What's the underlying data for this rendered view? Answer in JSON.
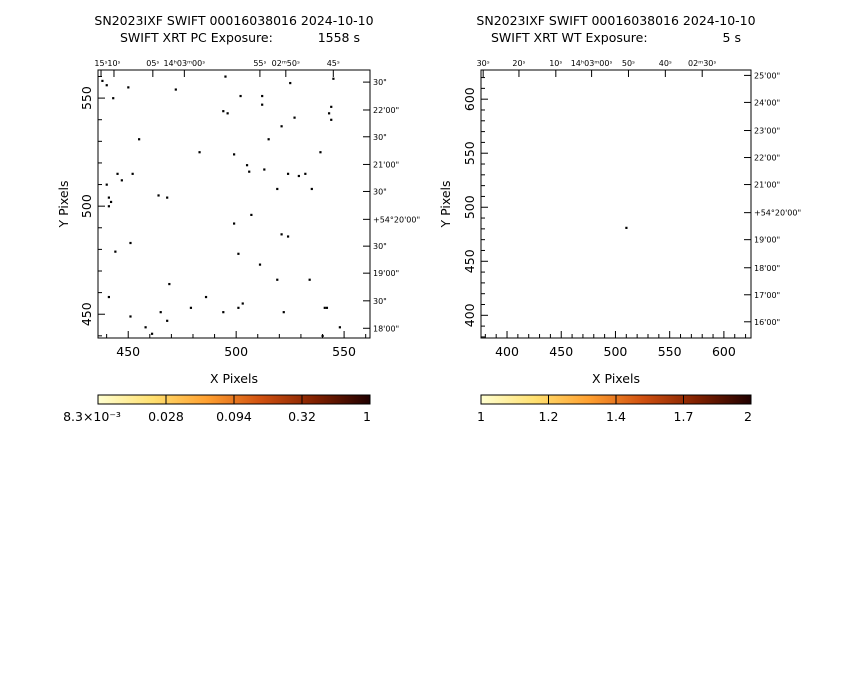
{
  "chart_data": [
    {
      "type": "scatter",
      "title": "SN2023IXF SWIFT 00016038016 2024-10-10",
      "subtitle_label": "SWIFT XRT PC Exposure:",
      "subtitle_value": "1558 s",
      "xlabel": "X Pixels",
      "ylabel": "Y Pixels",
      "xlim": [
        436,
        562
      ],
      "ylim": [
        439,
        563
      ],
      "x_ticks": [
        "450",
        "500",
        "550"
      ],
      "y_ticks": [
        "450",
        "500",
        "550"
      ],
      "ra_ticks": [
        "15ˢ",
        "10ˢ",
        "05ˢ",
        "14ʰ03ᵐ00ˢ",
        "55ˢ",
        "02ᵐ50ˢ",
        "45ˢ"
      ],
      "ra_x": [
        437.4,
        443.4,
        461.4,
        476,
        511,
        523,
        545
      ],
      "dec_ticks": [
        "30\"",
        "22'00\"",
        "30\"",
        "21'00\"",
        "30\"",
        "+54°20'00\"",
        "30\"",
        "19'00\"",
        "30\"",
        "18'00\""
      ],
      "dec_y": [
        557.4,
        544.5,
        532.1,
        519.3,
        506.8,
        493.9,
        481.5,
        469.0,
        456.2,
        443.5
      ],
      "events": [
        [
          438,
          558
        ],
        [
          440,
          556
        ],
        [
          443,
          550
        ],
        [
          450,
          555
        ],
        [
          472,
          554
        ],
        [
          495,
          560
        ],
        [
          502,
          551
        ],
        [
          512,
          551
        ],
        [
          525,
          557
        ],
        [
          545,
          559
        ],
        [
          494,
          544
        ],
        [
          496,
          543
        ],
        [
          512,
          547
        ],
        [
          544,
          546
        ],
        [
          543,
          543
        ],
        [
          544,
          540
        ],
        [
          521,
          537
        ],
        [
          527,
          541
        ],
        [
          539,
          525
        ],
        [
          513,
          517
        ],
        [
          506,
          516
        ],
        [
          499,
          524
        ],
        [
          483,
          525
        ],
        [
          455,
          531
        ],
        [
          515,
          531
        ],
        [
          468,
          504
        ],
        [
          447,
          512
        ],
        [
          452,
          515
        ],
        [
          442,
          502
        ],
        [
          441,
          500
        ],
        [
          464,
          505
        ],
        [
          441,
          504
        ],
        [
          445,
          515
        ],
        [
          440,
          510
        ],
        [
          505,
          519
        ],
        [
          519,
          508
        ],
        [
          524,
          515
        ],
        [
          529,
          514
        ],
        [
          532,
          515
        ],
        [
          499,
          492
        ],
        [
          507,
          496
        ],
        [
          521,
          487
        ],
        [
          524,
          486
        ],
        [
          535,
          508
        ],
        [
          451,
          483
        ],
        [
          444,
          479
        ],
        [
          501,
          478
        ],
        [
          511,
          473
        ],
        [
          519,
          466
        ],
        [
          534,
          466
        ],
        [
          469,
          464
        ],
        [
          486,
          458
        ],
        [
          479,
          453
        ],
        [
          465,
          451
        ],
        [
          468,
          447
        ],
        [
          451,
          449
        ],
        [
          458,
          444
        ],
        [
          461,
          441
        ],
        [
          441,
          458
        ],
        [
          501,
          453
        ],
        [
          503,
          455
        ],
        [
          541,
          453
        ],
        [
          542,
          453
        ],
        [
          522,
          451
        ],
        [
          494,
          451
        ],
        [
          548,
          444
        ],
        [
          540,
          440
        ]
      ],
      "colorbar": {
        "ticks": [
          "8.3×10⁻³",
          "0.028",
          "0.094",
          "0.32",
          "1"
        ],
        "colors": [
          "#ffffd0",
          "#ffe070",
          "#ffa030",
          "#d05010",
          "#802000",
          "#200000"
        ]
      }
    },
    {
      "type": "scatter",
      "title": "SN2023IXF SWIFT 00016038016 2024-10-10",
      "subtitle_label": "SWIFT XRT WT Exposure:",
      "subtitle_value": "5 s",
      "xlabel": "X Pixels",
      "ylabel": "Y Pixels",
      "xlim": [
        376,
        625
      ],
      "ylim": [
        379,
        627
      ],
      "x_ticks": [
        "400",
        "450",
        "500",
        "550",
        "600"
      ],
      "y_ticks": [
        "400",
        "450",
        "500",
        "550",
        "600"
      ],
      "ra_ticks": [
        "30ˢ",
        "20ˢ",
        "10ˢ",
        "14ʰ03ᵐ00ˢ",
        "50ˢ",
        "40ˢ",
        "02ᵐ30ˢ"
      ],
      "ra_x": [
        378,
        411,
        445,
        478,
        512,
        546,
        580
      ],
      "dec_ticks": [
        "25'00\"",
        "24'00\"",
        "23'00\"",
        "22'00\"",
        "21'00\"",
        "+54°20'00\"",
        "19'00\"",
        "18'00\"",
        "17'00\"",
        "16'00\""
      ],
      "dec_y": [
        622,
        597,
        571,
        546,
        521,
        495,
        470,
        444,
        419,
        394
      ],
      "events": [
        [
          510,
          481
        ]
      ],
      "colorbar": {
        "ticks": [
          "1",
          "1.2",
          "1.4",
          "1.7",
          "2"
        ],
        "colors": [
          "#ffffd0",
          "#ffe070",
          "#ffa030",
          "#d05010",
          "#802000",
          "#200000"
        ]
      }
    }
  ]
}
